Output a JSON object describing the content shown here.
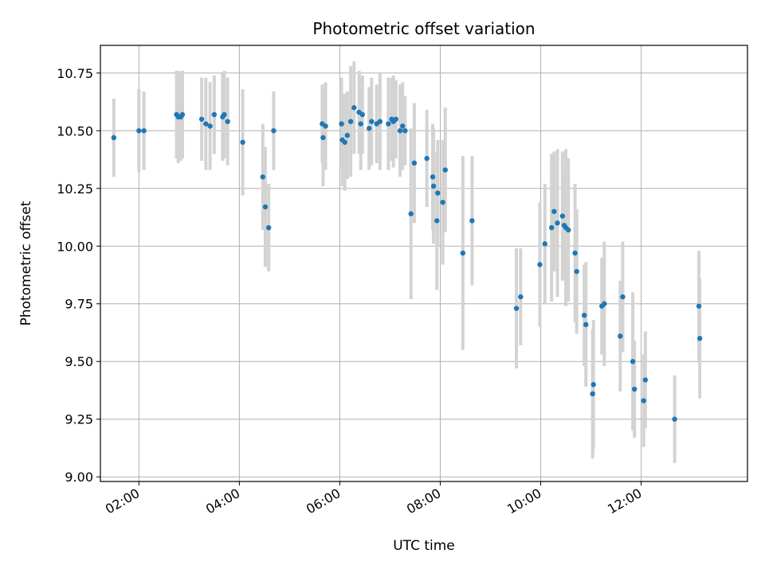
{
  "chart_data": {
    "type": "scatter",
    "title": "Photometric offset variation",
    "xlabel": "UTC time",
    "ylabel": "Photometric offset",
    "x_ticks": [
      "02:00",
      "04:00",
      "06:00",
      "08:00",
      "10:00",
      "12:00"
    ],
    "y_ticks": [
      "9.00",
      "9.25",
      "9.50",
      "9.75",
      "10.00",
      "10.25",
      "10.50",
      "10.75"
    ],
    "xlim": [
      "01:14",
      "14:07"
    ],
    "ylim": [
      8.98,
      10.87
    ],
    "grid": true,
    "colors": {
      "point": "#1f77b4",
      "errorbar": "#d3d3d3",
      "grid": "#b0b0b0"
    },
    "series": [
      {
        "x": [
          "01:30",
          "02:00",
          "02:06",
          "02:45",
          "02:47",
          "02:50",
          "02:52",
          "03:15",
          "03:20",
          "03:25",
          "03:30",
          "03:40",
          "03:42",
          "03:46",
          "04:04",
          "04:28",
          "04:31",
          "04:35",
          "04:41",
          "05:39",
          "05:40",
          "05:43",
          "06:02",
          "06:03",
          "06:06",
          "06:09",
          "06:13",
          "06:17",
          "06:23",
          "06:25",
          "06:27",
          "06:35",
          "06:38",
          "06:44",
          "06:48",
          "06:58",
          "07:02",
          "07:04",
          "07:07",
          "07:12",
          "07:15",
          "07:18",
          "07:25",
          "07:29",
          "07:44",
          "07:51",
          "07:52",
          "07:56",
          "07:57",
          "08:03",
          "08:06",
          "08:27",
          "08:38",
          "09:31",
          "09:36",
          "09:59",
          "10:05",
          "10:13",
          "10:16",
          "10:20",
          "10:26",
          "10:28",
          "10:30",
          "10:33",
          "10:41",
          "10:43",
          "10:52",
          "10:54",
          "11:02",
          "11:03",
          "11:13",
          "11:16",
          "11:35",
          "11:38",
          "11:50",
          "11:52",
          "12:03",
          "12:05",
          "12:40",
          "13:09",
          "13:10"
        ],
        "y": [
          10.47,
          10.5,
          10.5,
          10.57,
          10.56,
          10.56,
          10.57,
          10.55,
          10.53,
          10.52,
          10.57,
          10.56,
          10.57,
          10.54,
          10.45,
          10.3,
          10.17,
          10.08,
          10.5,
          10.53,
          10.47,
          10.52,
          10.53,
          10.46,
          10.45,
          10.48,
          10.54,
          10.6,
          10.58,
          10.53,
          10.57,
          10.51,
          10.54,
          10.53,
          10.54,
          10.53,
          10.55,
          10.54,
          10.55,
          10.5,
          10.52,
          10.5,
          10.14,
          10.36,
          10.38,
          10.3,
          10.26,
          10.11,
          10.23,
          10.19,
          10.33,
          9.97,
          10.11,
          9.73,
          9.78,
          9.92,
          10.01,
          10.08,
          10.15,
          10.1,
          10.13,
          10.09,
          10.08,
          10.07,
          9.97,
          9.89,
          9.7,
          9.66,
          9.36,
          9.4,
          9.74,
          9.75,
          9.61,
          9.78,
          9.5,
          9.38,
          9.33,
          9.42,
          9.25,
          9.74,
          9.6
        ],
        "yerr": [
          0.17,
          0.18,
          0.17,
          0.19,
          0.2,
          0.19,
          0.19,
          0.18,
          0.2,
          0.19,
          0.17,
          0.19,
          0.19,
          0.19,
          0.23,
          0.23,
          0.26,
          0.19,
          0.17,
          0.17,
          0.21,
          0.19,
          0.2,
          0.2,
          0.21,
          0.19,
          0.24,
          0.2,
          0.18,
          0.2,
          0.17,
          0.18,
          0.19,
          0.17,
          0.21,
          0.2,
          0.18,
          0.2,
          0.17,
          0.2,
          0.19,
          0.15,
          0.37,
          0.26,
          0.21,
          0.23,
          0.25,
          0.3,
          0.23,
          0.27,
          0.27,
          0.42,
          0.28,
          0.26,
          0.21,
          0.27,
          0.26,
          0.32,
          0.26,
          0.32,
          0.28,
          0.23,
          0.34,
          0.31,
          0.3,
          0.27,
          0.22,
          0.27,
          0.28,
          0.28,
          0.21,
          0.27,
          0.24,
          0.24,
          0.3,
          0.21,
          0.2,
          0.21,
          0.19,
          0.24,
          0.26
        ]
      }
    ]
  }
}
